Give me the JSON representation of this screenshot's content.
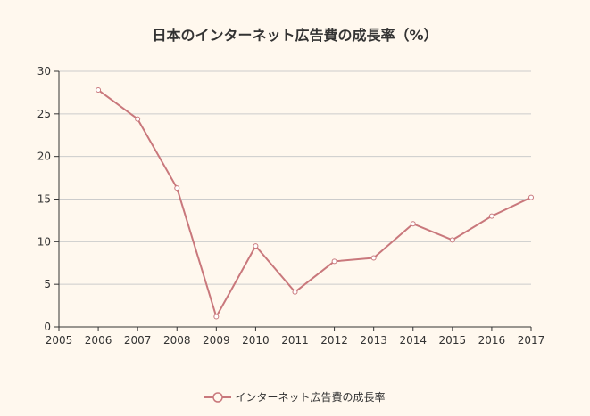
{
  "colors": {
    "background": "#fff8ee",
    "series": "#c9787c",
    "grid": "#cccccc",
    "axis": "#333333"
  },
  "chart_data": {
    "type": "line",
    "title": "日本のインターネット広告費の成長率（%）",
    "xlabel": "",
    "ylabel": "",
    "xlim": [
      2005,
      2017
    ],
    "ylim": [
      0,
      30
    ],
    "x_ticks": [
      "2005",
      "2006",
      "2007",
      "2008",
      "2009",
      "2010",
      "2011",
      "2012",
      "2013",
      "2014",
      "2015",
      "2016",
      "2017"
    ],
    "y_ticks": [
      "0",
      "5",
      "10",
      "15",
      "20",
      "25",
      "30"
    ],
    "grid": true,
    "legend": "bottom",
    "series": [
      {
        "name": "インターネット広告費の成長率",
        "x": [
          2006,
          2007,
          2008,
          2009,
          2010,
          2011,
          2012,
          2013,
          2014,
          2015,
          2016,
          2017
        ],
        "values": [
          27.8,
          24.4,
          16.3,
          1.2,
          9.5,
          4.1,
          7.7,
          8.1,
          12.1,
          10.2,
          13.0,
          15.2
        ]
      }
    ]
  }
}
